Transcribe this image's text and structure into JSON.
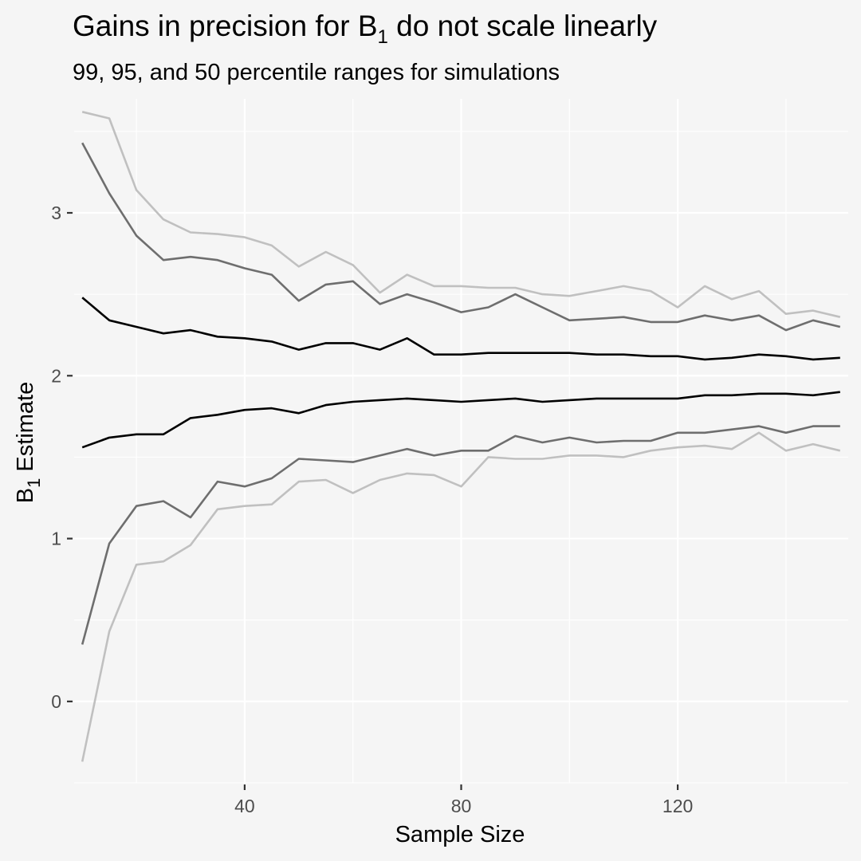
{
  "chart_data": {
    "type": "line",
    "title_parts": {
      "before": "Gains in precision for B",
      "sub": "1",
      "after": " do not scale linearly"
    },
    "subtitle": "99, 95, and 50 percentile ranges for simulations",
    "xlabel": "Sample Size",
    "ylabel_parts": {
      "before": "B",
      "sub": "1",
      "after": " Estimate"
    },
    "xlim": [
      8.5,
      151.5
    ],
    "ylim": [
      -0.5,
      3.7
    ],
    "x_major_ticks": [
      40,
      80,
      120
    ],
    "x_minor_ticks": [
      20,
      60,
      100,
      140
    ],
    "y_major_ticks": [
      0,
      1,
      2,
      3
    ],
    "y_minor_ticks": [
      -0.5,
      0.5,
      1.5,
      2.5,
      3.5
    ],
    "grid": true,
    "x": [
      10,
      15,
      20,
      25,
      30,
      35,
      40,
      45,
      50,
      55,
      60,
      65,
      70,
      75,
      80,
      85,
      90,
      95,
      100,
      105,
      110,
      115,
      120,
      125,
      130,
      135,
      140,
      145,
      150
    ],
    "series": [
      {
        "color": "#c0c0c0",
        "values": [
          3.62,
          3.58,
          3.14,
          2.96,
          2.88,
          2.87,
          2.85,
          2.8,
          2.67,
          2.76,
          2.68,
          2.51,
          2.62,
          2.55,
          2.55,
          2.54,
          2.54,
          2.5,
          2.49,
          2.52,
          2.55,
          2.52,
          2.42,
          2.55,
          2.47,
          2.52,
          2.38,
          2.4,
          2.36
        ]
      },
      {
        "color": "#6e6e6e",
        "values": [
          3.43,
          3.12,
          2.86,
          2.71,
          2.73,
          2.71,
          2.66,
          2.62,
          2.46,
          2.56,
          2.58,
          2.44,
          2.5,
          2.45,
          2.39,
          2.42,
          2.5,
          2.42,
          2.34,
          2.35,
          2.36,
          2.33,
          2.33,
          2.37,
          2.34,
          2.37,
          2.28,
          2.34,
          2.3
        ]
      },
      {
        "color": "#000000",
        "values": [
          2.48,
          2.34,
          2.3,
          2.26,
          2.28,
          2.24,
          2.23,
          2.21,
          2.16,
          2.2,
          2.2,
          2.16,
          2.23,
          2.13,
          2.13,
          2.14,
          2.14,
          2.14,
          2.14,
          2.13,
          2.13,
          2.12,
          2.12,
          2.1,
          2.11,
          2.13,
          2.12,
          2.1,
          2.11
        ]
      },
      {
        "color": "#000000",
        "values": [
          1.56,
          1.62,
          1.64,
          1.64,
          1.74,
          1.76,
          1.79,
          1.8,
          1.77,
          1.82,
          1.84,
          1.85,
          1.86,
          1.85,
          1.84,
          1.85,
          1.86,
          1.84,
          1.85,
          1.86,
          1.86,
          1.86,
          1.86,
          1.88,
          1.88,
          1.89,
          1.89,
          1.88,
          1.9
        ]
      },
      {
        "color": "#6e6e6e",
        "values": [
          0.35,
          0.97,
          1.2,
          1.23,
          1.13,
          1.35,
          1.32,
          1.37,
          1.49,
          1.48,
          1.47,
          1.51,
          1.55,
          1.51,
          1.54,
          1.54,
          1.63,
          1.59,
          1.62,
          1.59,
          1.6,
          1.6,
          1.65,
          1.65,
          1.67,
          1.69,
          1.65,
          1.69,
          1.69
        ]
      },
      {
        "color": "#c0c0c0",
        "values": [
          -0.37,
          0.43,
          0.84,
          0.86,
          0.96,
          1.18,
          1.2,
          1.21,
          1.35,
          1.36,
          1.28,
          1.36,
          1.4,
          1.39,
          1.32,
          1.5,
          1.49,
          1.49,
          1.51,
          1.51,
          1.5,
          1.54,
          1.56,
          1.57,
          1.55,
          1.65,
          1.54,
          1.58,
          1.54
        ]
      }
    ]
  }
}
